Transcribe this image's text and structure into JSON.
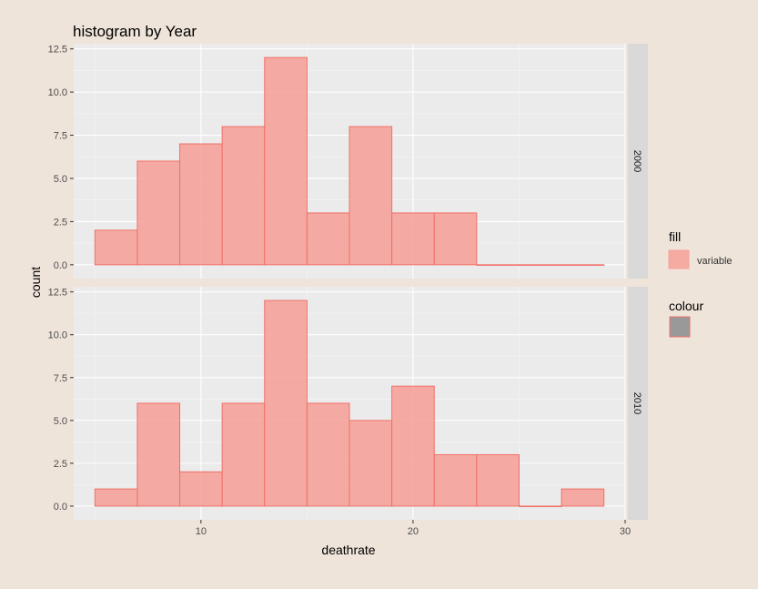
{
  "chart_data": {
    "type": "bar",
    "title": "histogram by Year",
    "xlabel": "deathrate",
    "ylabel": "count",
    "xlim": [
      4,
      30
    ],
    "ylim": [
      -0.8,
      12.8
    ],
    "x_ticks": [
      10,
      20,
      30
    ],
    "y_ticks": [
      0.0,
      2.5,
      5.0,
      7.5,
      10.0,
      12.5
    ],
    "bin_width": 2,
    "grid": true,
    "facets": [
      {
        "label": "2000",
        "bins": [
          {
            "x0": 5,
            "x1": 7,
            "count": 2
          },
          {
            "x0": 7,
            "x1": 9,
            "count": 6
          },
          {
            "x0": 9,
            "x1": 11,
            "count": 7
          },
          {
            "x0": 11,
            "x1": 13,
            "count": 8
          },
          {
            "x0": 13,
            "x1": 15,
            "count": 12
          },
          {
            "x0": 15,
            "x1": 17,
            "count": 3
          },
          {
            "x0": 17,
            "x1": 19,
            "count": 8
          },
          {
            "x0": 19,
            "x1": 21,
            "count": 3
          },
          {
            "x0": 21,
            "x1": 23,
            "count": 3
          },
          {
            "x0": 23,
            "x1": 25,
            "count": 0
          },
          {
            "x0": 25,
            "x1": 27,
            "count": 0
          },
          {
            "x0": 27,
            "x1": 29,
            "count": 0
          }
        ]
      },
      {
        "label": "2010",
        "bins": [
          {
            "x0": 5,
            "x1": 7,
            "count": 1
          },
          {
            "x0": 7,
            "x1": 9,
            "count": 6
          },
          {
            "x0": 9,
            "x1": 11,
            "count": 2
          },
          {
            "x0": 11,
            "x1": 13,
            "count": 6
          },
          {
            "x0": 13,
            "x1": 15,
            "count": 12
          },
          {
            "x0": 15,
            "x1": 17,
            "count": 6
          },
          {
            "x0": 17,
            "x1": 19,
            "count": 5
          },
          {
            "x0": 19,
            "x1": 21,
            "count": 7
          },
          {
            "x0": 21,
            "x1": 23,
            "count": 3
          },
          {
            "x0": 23,
            "x1": 25,
            "count": 3
          },
          {
            "x0": 25,
            "x1": 27,
            "count": 0
          },
          {
            "x0": 27,
            "x1": 29,
            "count": 1
          }
        ]
      }
    ],
    "legend": {
      "placement": "right",
      "fill_title": "fill",
      "fill_label": "variable",
      "colour_title": "colour"
    },
    "colors": {
      "background": "#EFE4DA",
      "panel": "#EBEBEB",
      "strip": "#D9D9D9",
      "bar_fill": "#F5A39B",
      "bar_stroke": "#F07067",
      "colour_key": "#999999"
    }
  }
}
